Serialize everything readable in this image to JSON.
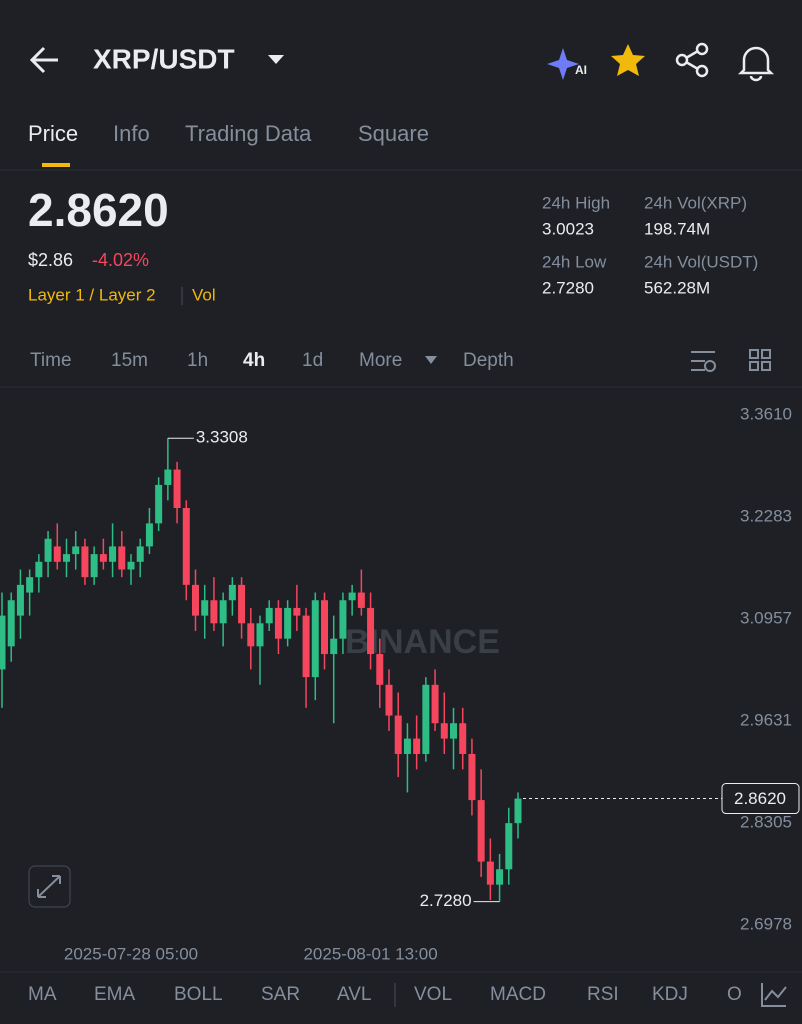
{
  "header": {
    "pair": "XRP/USDT",
    "ai_badge": "AI"
  },
  "tabs": [
    "Price",
    "Info",
    "Trading Data",
    "Square"
  ],
  "price": {
    "last": "2.8620",
    "usd": "$2.86",
    "change": "-4.02%",
    "tags": [
      "Layer 1 / Layer 2",
      "Vol"
    ]
  },
  "stats": [
    {
      "label": "24h High",
      "value": "3.0023"
    },
    {
      "label": "24h Vol(XRP)",
      "value": "198.74M"
    },
    {
      "label": "24h Low",
      "value": "2.7280"
    },
    {
      "label": "24h Vol(USDT)",
      "value": "562.28M"
    }
  ],
  "timeframes": [
    "Time",
    "15m",
    "1h",
    "4h",
    "1d",
    "More",
    "Depth"
  ],
  "indicators": [
    "MA",
    "EMA",
    "BOLL",
    "SAR",
    "AVL",
    "VOL",
    "MACD",
    "RSI",
    "KDJ",
    "O"
  ],
  "chart_data": {
    "type": "candlestick",
    "watermark": "BINANCE",
    "up_color": "#2ebd85",
    "down_color": "#f6465d",
    "categories": [
      null,
      null,
      null,
      null,
      null,
      null,
      null,
      null,
      null,
      null,
      null,
      null,
      null,
      null,
      "2025-07-28 05:00",
      null,
      null,
      null,
      null,
      null,
      null,
      null,
      null,
      null,
      null,
      null,
      null,
      null,
      null,
      null,
      null,
      null,
      null,
      null,
      null,
      null,
      null,
      null,
      null,
      null,
      "2025-08-01 13:00",
      null,
      null,
      null,
      null,
      null,
      null,
      null,
      null,
      null,
      null,
      null,
      null,
      null,
      null,
      null,
      null
    ],
    "open": [
      3.03,
      3.06,
      3.1,
      3.13,
      3.15,
      3.17,
      3.19,
      3.17,
      3.18,
      3.19,
      3.15,
      3.18,
      3.17,
      3.19,
      3.16,
      3.17,
      3.19,
      3.22,
      3.27,
      3.29,
      3.24,
      3.14,
      3.1,
      3.12,
      3.09,
      3.12,
      3.14,
      3.09,
      3.06,
      3.09,
      3.11,
      3.07,
      3.11,
      3.1,
      3.02,
      3.12,
      3.05,
      3.07,
      3.12,
      3.13,
      3.11,
      3.05,
      3.01,
      2.97,
      2.92,
      2.94,
      2.92,
      3.01,
      2.96,
      2.94,
      2.96,
      2.92,
      2.86,
      2.78,
      2.75,
      2.77,
      2.83
    ],
    "high": [
      3.13,
      3.13,
      3.16,
      3.16,
      3.18,
      3.21,
      3.22,
      3.2,
      3.21,
      3.2,
      3.19,
      3.2,
      3.22,
      3.21,
      3.18,
      3.2,
      3.24,
      3.28,
      3.3308,
      3.3,
      3.25,
      3.16,
      3.14,
      3.15,
      3.13,
      3.15,
      3.15,
      3.11,
      3.1,
      3.12,
      3.12,
      3.12,
      3.14,
      3.11,
      3.13,
      3.13,
      3.1,
      3.13,
      3.14,
      3.16,
      3.13,
      3.07,
      3.03,
      3.0,
      2.96,
      2.97,
      3.02,
      3.03,
      3.0,
      2.98,
      2.98,
      2.94,
      2.9,
      2.81,
      2.79,
      2.85,
      2.87
    ],
    "low": [
      2.98,
      3.04,
      3.07,
      3.1,
      3.13,
      3.15,
      3.16,
      3.15,
      3.16,
      3.14,
      3.14,
      3.16,
      3.15,
      3.15,
      3.14,
      3.15,
      3.18,
      3.21,
      3.25,
      3.22,
      3.12,
      3.08,
      3.07,
      3.08,
      3.06,
      3.1,
      3.07,
      3.03,
      3.01,
      3.08,
      3.05,
      3.06,
      3.08,
      2.98,
      2.99,
      3.03,
      2.96,
      3.05,
      3.1,
      3.1,
      3.03,
      2.98,
      2.95,
      2.89,
      2.87,
      2.9,
      2.91,
      2.95,
      2.92,
      2.9,
      2.9,
      2.84,
      2.76,
      2.73,
      2.728,
      2.75,
      2.81
    ],
    "close": [
      3.1,
      3.12,
      3.14,
      3.15,
      3.17,
      3.2,
      3.17,
      3.18,
      3.19,
      3.15,
      3.18,
      3.17,
      3.19,
      3.16,
      3.17,
      3.19,
      3.22,
      3.27,
      3.29,
      3.24,
      3.14,
      3.1,
      3.12,
      3.09,
      3.12,
      3.14,
      3.09,
      3.06,
      3.09,
      3.11,
      3.07,
      3.11,
      3.1,
      3.02,
      3.12,
      3.05,
      3.07,
      3.12,
      3.13,
      3.11,
      3.05,
      3.01,
      2.97,
      2.92,
      2.94,
      2.92,
      3.01,
      2.96,
      2.94,
      2.96,
      2.92,
      2.86,
      2.78,
      2.75,
      2.77,
      2.83,
      2.862
    ],
    "ylim": [
      2.678,
      3.387
    ],
    "yticks": [
      {
        "value": 3.361,
        "label": "3.3610"
      },
      3.2283,
      3.0957,
      2.9631,
      2.8305,
      2.6978
    ],
    "annotations": [
      {
        "value": 3.3308,
        "label": "3.3308"
      },
      {
        "value": 2.728,
        "label": "2.7280"
      }
    ],
    "current_price": {
      "value": 2.862,
      "label": "2.8620"
    }
  }
}
